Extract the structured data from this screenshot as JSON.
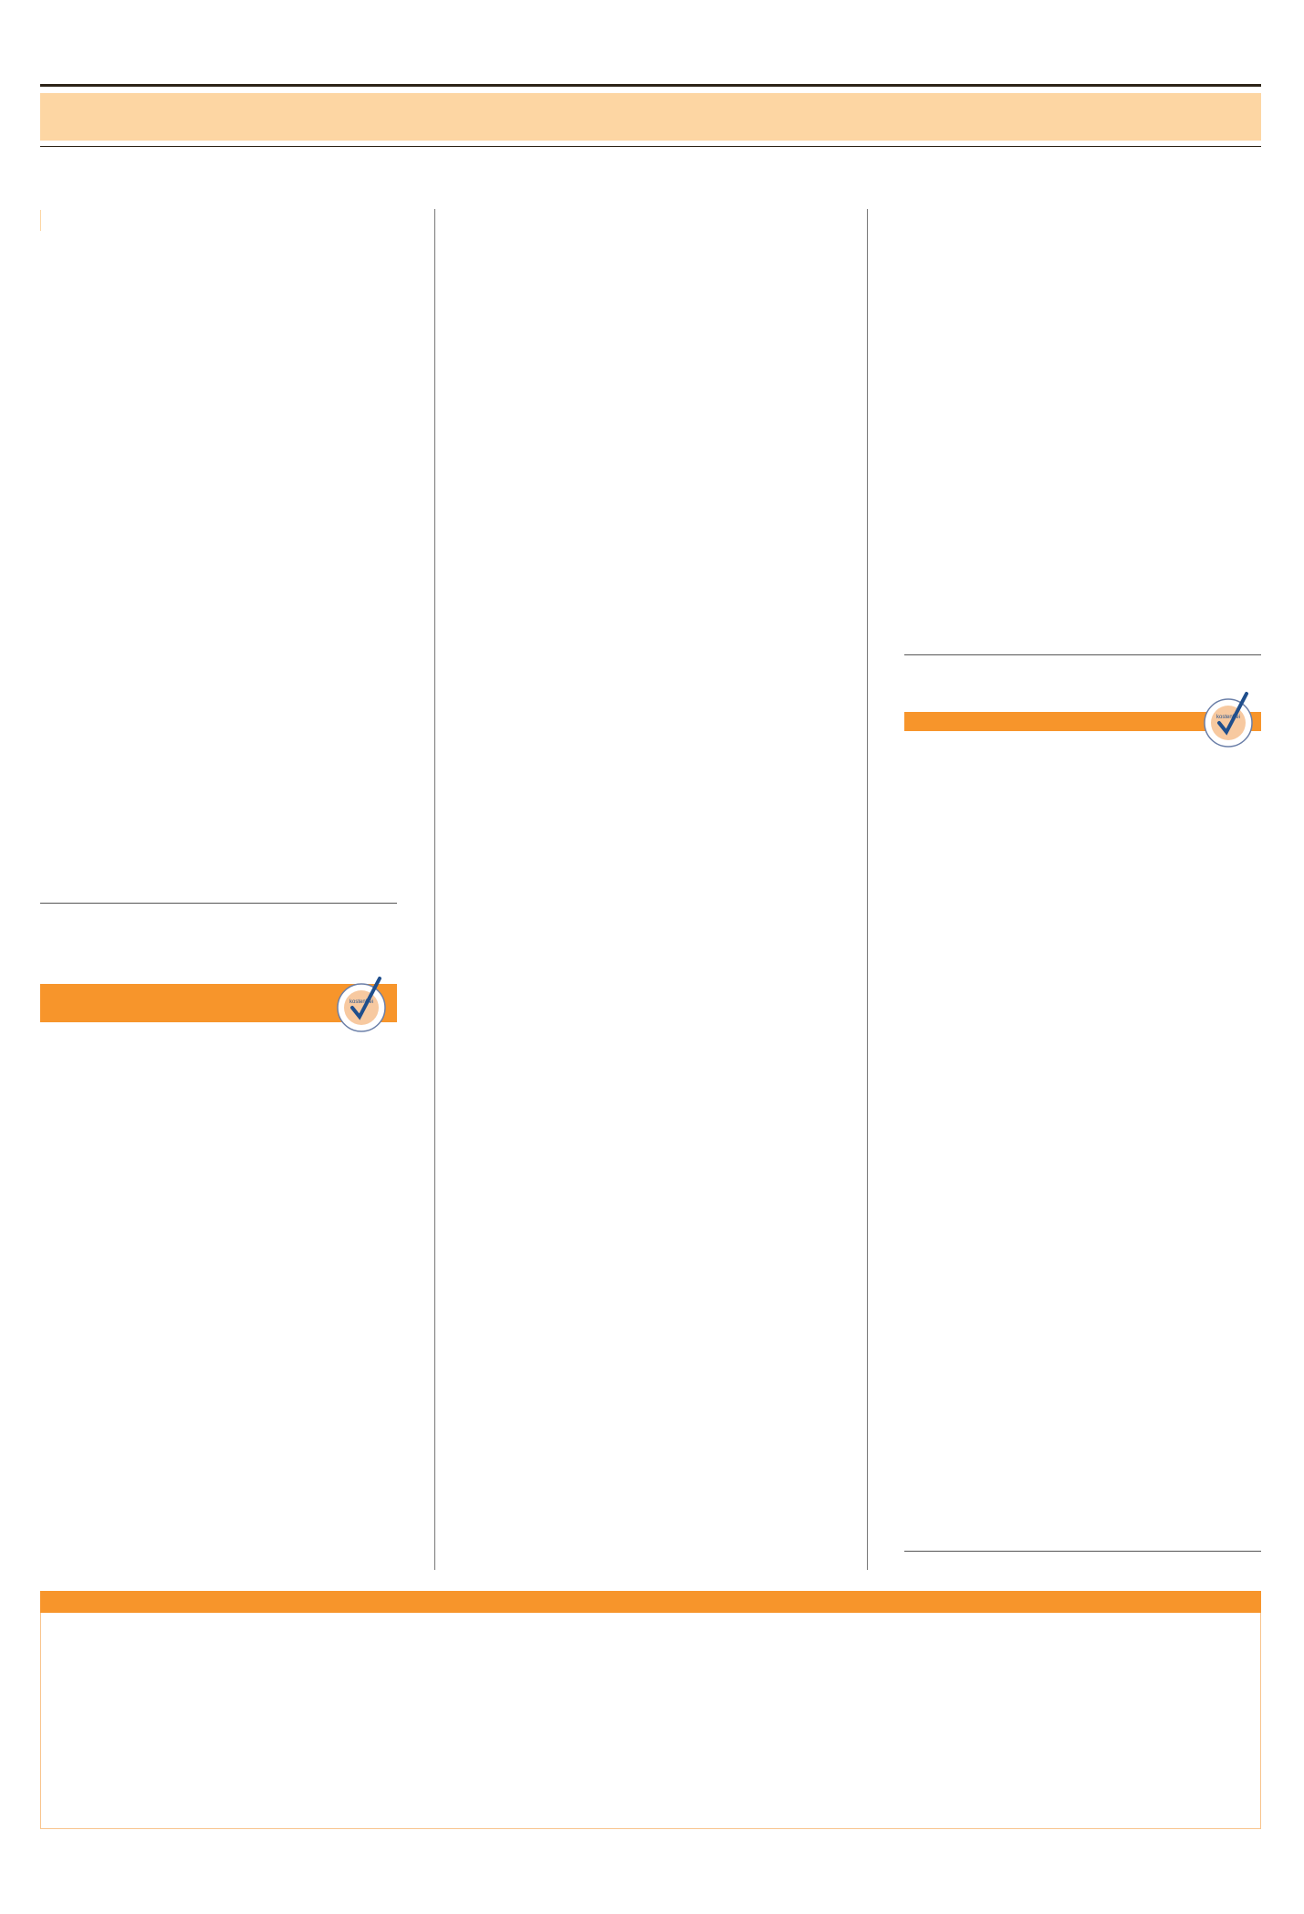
{
  "colors": {
    "header_band": "#fdd6a3",
    "accent": "#f7952b",
    "rule": "#2d2418",
    "badge_blue": "#1f4e8c"
  },
  "badges": [
    {
      "icon": "kostenfrei-seal-icon",
      "text": "kostenfrei"
    },
    {
      "icon": "kostenfrei-seal-icon",
      "text": "kostenfrei"
    }
  ]
}
